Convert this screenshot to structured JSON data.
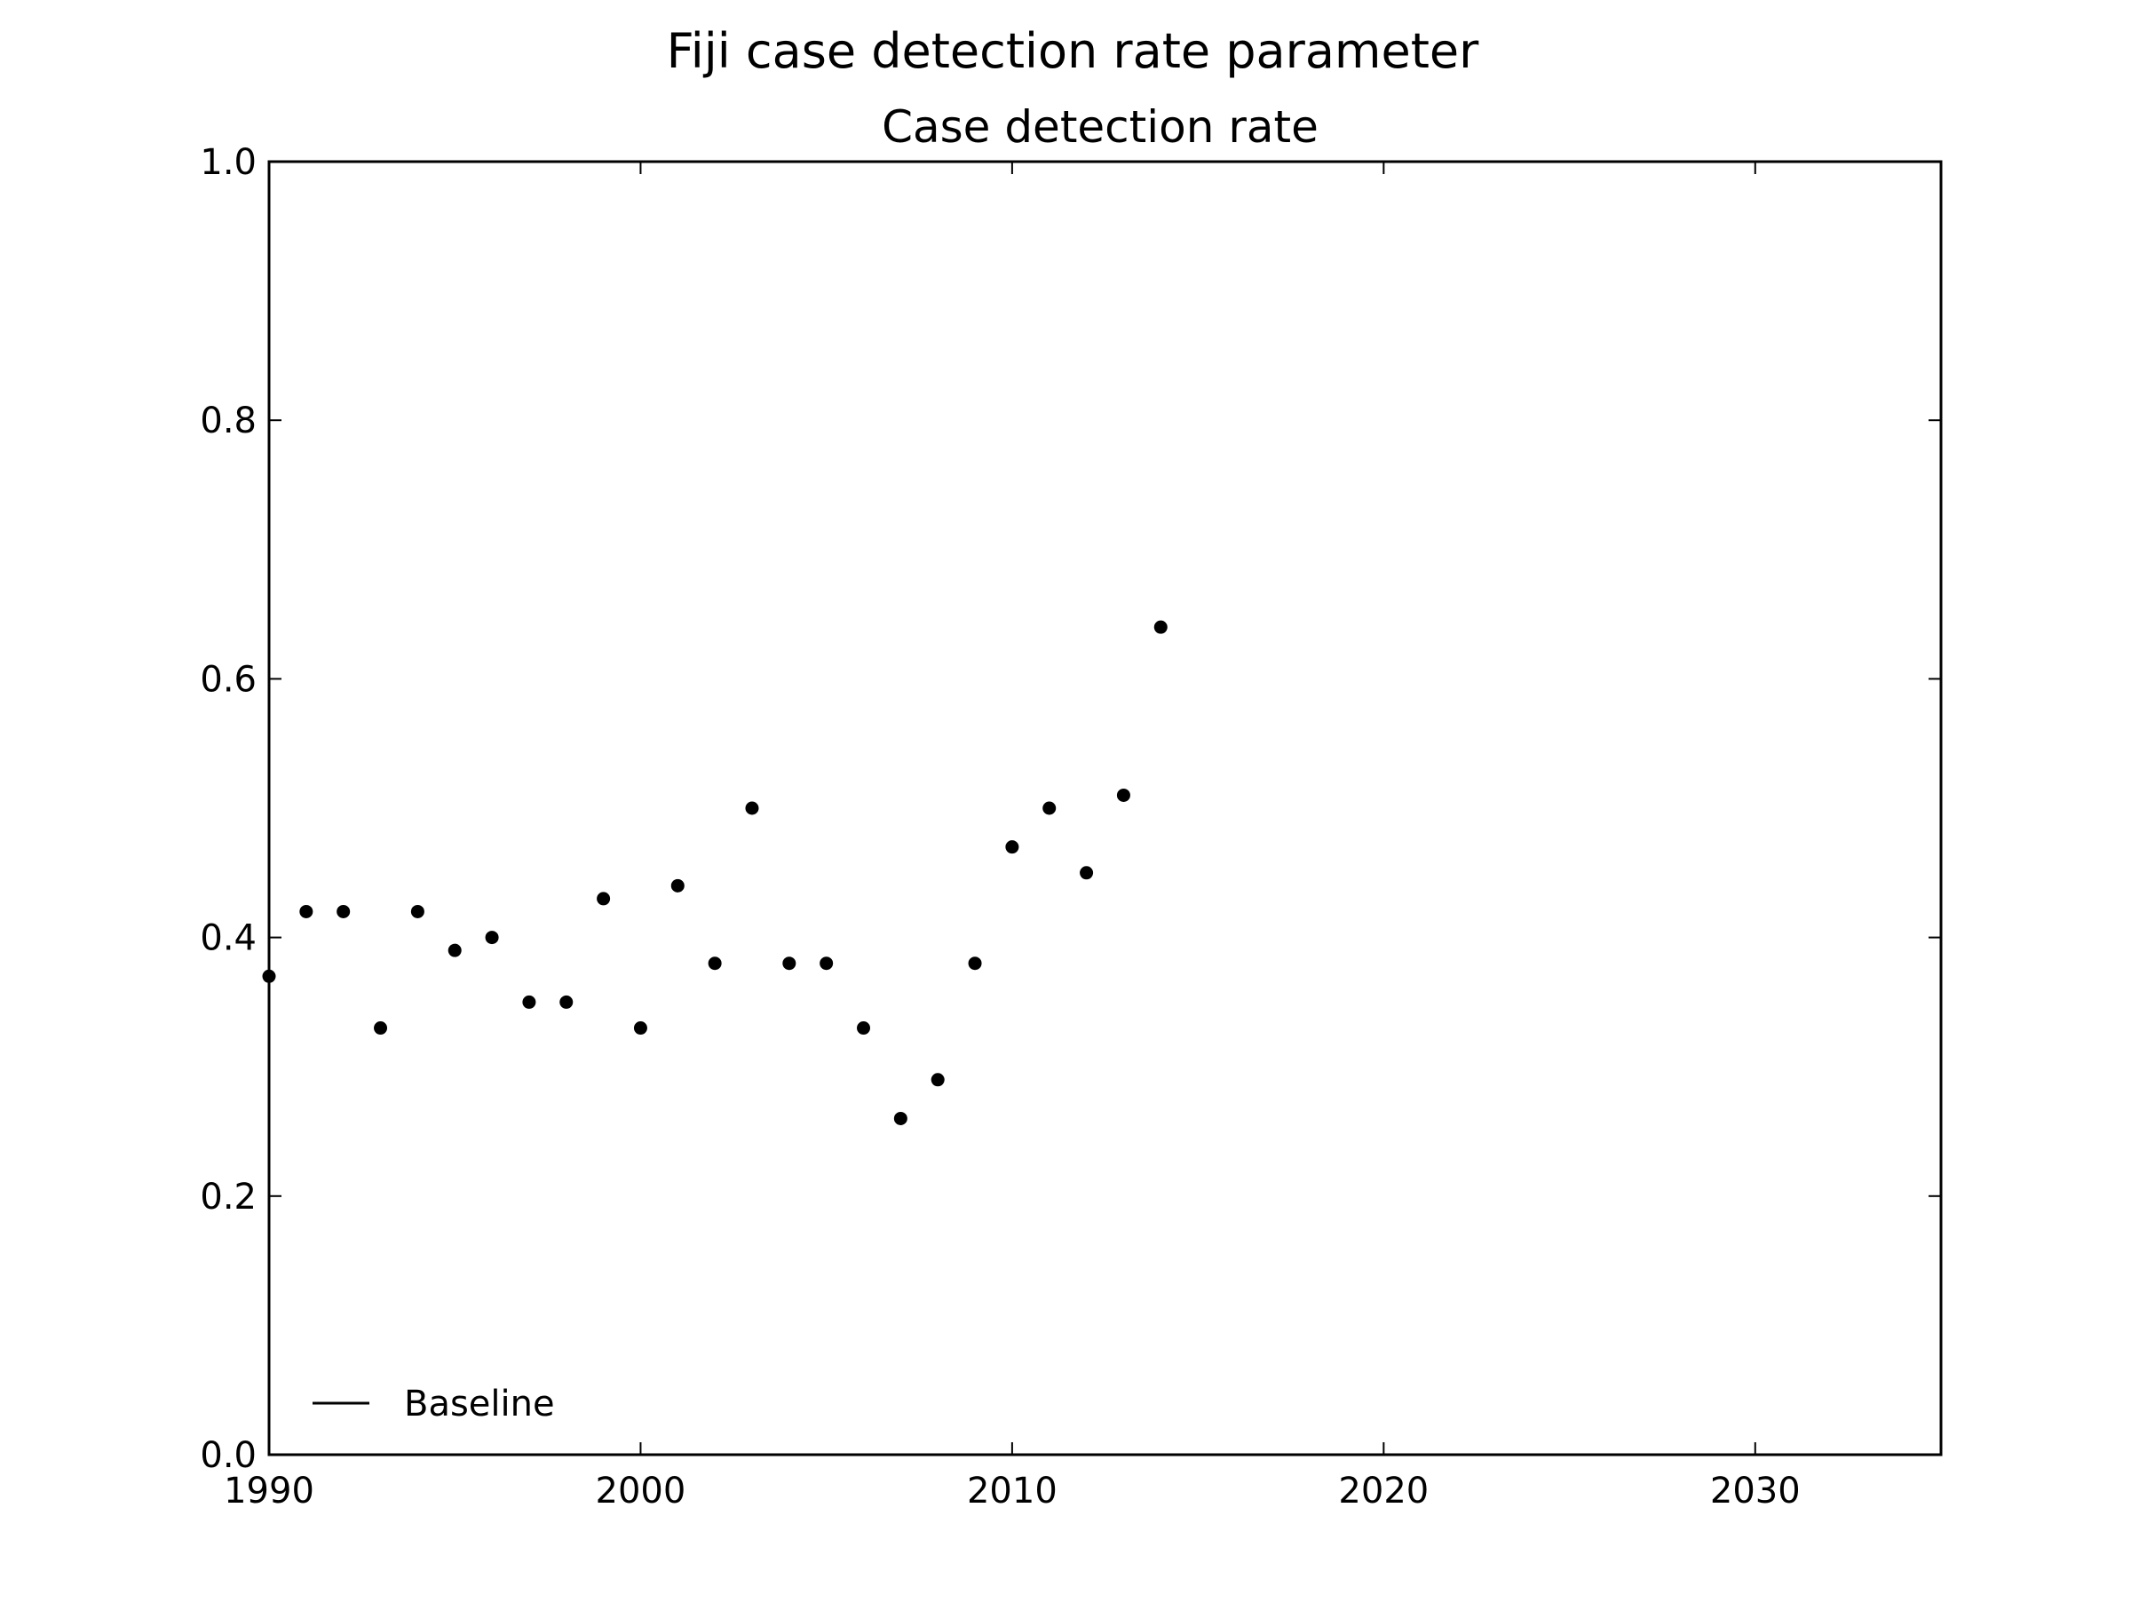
{
  "chart_data": {
    "type": "scatter",
    "title": "Fiji case detection rate parameter",
    "subtitle": "Case detection rate",
    "xlabel": "",
    "ylabel": "",
    "xlim": [
      1990,
      2035
    ],
    "ylim": [
      0.0,
      1.0
    ],
    "x_ticks": [
      "1990",
      "2000",
      "2010",
      "2020",
      "2030"
    ],
    "y_ticks": [
      "0.0",
      "0.2",
      "0.4",
      "0.6",
      "0.8",
      "1.0"
    ],
    "grid": false,
    "legend_position": "lower-left",
    "legend_entries": [
      "Baseline"
    ],
    "series": [
      {
        "name": "Baseline",
        "x": [
          1990,
          1991,
          1992,
          1993,
          1994,
          1995,
          1996,
          1997,
          1998,
          1999,
          2000,
          2001,
          2002,
          2003,
          2004,
          2005,
          2006,
          2007,
          2008,
          2009,
          2010,
          2011,
          2012,
          2013,
          2014
        ],
        "y": [
          0.37,
          0.42,
          0.42,
          0.33,
          0.42,
          0.39,
          0.4,
          0.35,
          0.35,
          0.43,
          0.33,
          0.44,
          0.38,
          0.5,
          0.38,
          0.38,
          0.33,
          0.26,
          0.29,
          0.38,
          0.47,
          0.5,
          0.45,
          0.51,
          0.64
        ]
      }
    ],
    "colors": {
      "points": "#000000",
      "axes": "#000000",
      "background": "#ffffff"
    }
  }
}
